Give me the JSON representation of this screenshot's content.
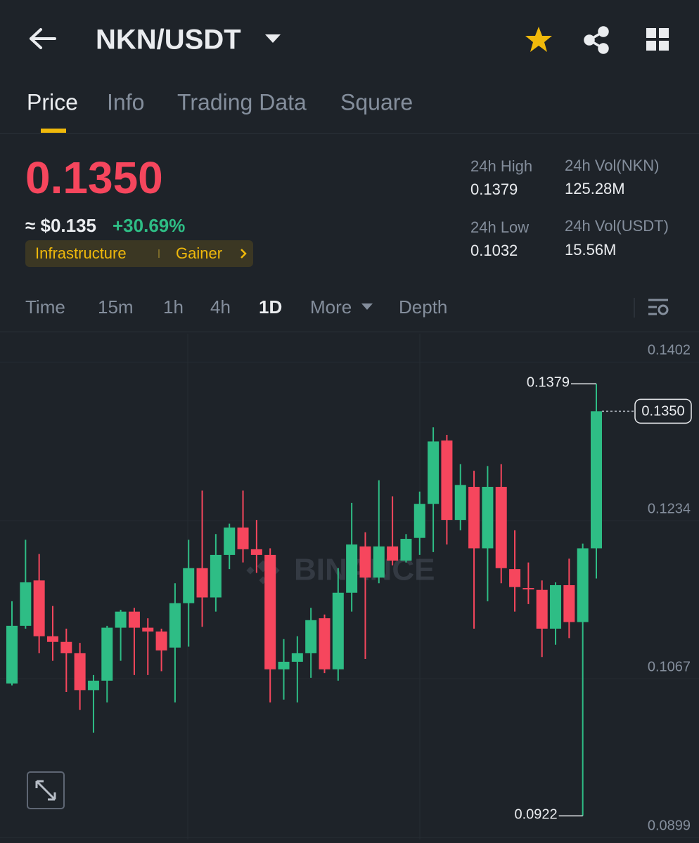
{
  "header": {
    "pair": "NKN/USDT"
  },
  "tabs": [
    "Price",
    "Info",
    "Trading Data",
    "Square"
  ],
  "price": {
    "last": "0.1350",
    "usd": "≈ $0.135",
    "change": "+30.69%",
    "tags": [
      "Infrastructure",
      "Gainer"
    ]
  },
  "stats": [
    {
      "label": "24h High",
      "value": "0.1379"
    },
    {
      "label": "24h Vol(NKN)",
      "value": "125.28M"
    },
    {
      "label": "24h Low",
      "value": "0.1032"
    },
    {
      "label": "24h Vol(USDT)",
      "value": "15.56M"
    }
  ],
  "intervals": [
    "Time",
    "15m",
    "1h",
    "4h",
    "1D",
    "More",
    "Depth"
  ],
  "chart_data": {
    "type": "candlestick",
    "watermark": "BINANCE",
    "up_color": "#2ebd85",
    "down_color": "#f6465d",
    "open": [
      0.1062,
      0.1123,
      0.1171,
      0.1112,
      0.1106,
      0.1094,
      0.1055,
      0.1065,
      0.1121,
      0.1138,
      0.1121,
      0.1117,
      0.11,
      0.1147,
      0.1184,
      0.1153,
      0.1198,
      0.1227,
      0.1204,
      0.1198,
      0.1077,
      0.1085,
      0.1094,
      0.1131,
      0.1077,
      0.1158,
      0.1207,
      0.1174,
      0.1207,
      0.1192,
      0.1216,
      0.1252,
      0.1319,
      0.1235,
      0.127,
      0.1205,
      0.127,
      0.1183,
      0.1163,
      0.1161,
      0.112,
      0.1166,
      0.1127,
      0.1205
    ],
    "high": [
      0.1149,
      0.1214,
      0.1199,
      0.1144,
      0.112,
      0.1105,
      0.1071,
      0.1123,
      0.114,
      0.1142,
      0.1131,
      0.112,
      0.1168,
      0.1214,
      0.1266,
      0.122,
      0.1231,
      0.1266,
      0.1235,
      0.1205,
      0.1109,
      0.1112,
      0.1142,
      0.1135,
      0.1184,
      0.1253,
      0.1222,
      0.1277,
      0.126,
      0.122,
      0.1265,
      0.1333,
      0.1325,
      0.1294,
      0.1287,
      0.1292,
      0.1294,
      0.1224,
      0.119,
      0.1171,
      0.1169,
      0.1194,
      0.121,
      0.1379
    ],
    "low": [
      0.106,
      0.112,
      0.1094,
      0.1086,
      0.1053,
      0.1034,
      0.101,
      0.1042,
      0.1086,
      0.1071,
      0.1071,
      0.1075,
      0.1042,
      0.1101,
      0.1122,
      0.1138,
      0.1183,
      0.119,
      0.1179,
      0.1042,
      0.1045,
      0.1042,
      0.1068,
      0.1073,
      0.1065,
      0.1138,
      0.1088,
      0.1168,
      0.1187,
      0.119,
      0.1198,
      0.1201,
      0.1209,
      0.1224,
      0.112,
      0.1149,
      0.1168,
      0.1138,
      0.1146,
      0.109,
      0.1103,
      0.111,
      0.0922,
      0.1173
    ],
    "close": [
      0.1123,
      0.1169,
      0.1112,
      0.1106,
      0.1094,
      0.1055,
      0.1065,
      0.1121,
      0.1138,
      0.1121,
      0.1117,
      0.1097,
      0.1147,
      0.1184,
      0.1153,
      0.1198,
      0.1227,
      0.1204,
      0.1198,
      0.1077,
      0.1085,
      0.1094,
      0.1129,
      0.1077,
      0.1158,
      0.1209,
      0.1174,
      0.1207,
      0.1192,
      0.1215,
      0.1252,
      0.1318,
      0.1235,
      0.1272,
      0.1205,
      0.127,
      0.1184,
      0.1164,
      0.1162,
      0.112,
      0.1166,
      0.1127,
      0.1205,
      0.135
    ],
    "ylim": [
      0.0897,
      0.1432
    ],
    "yticks": [
      0.1402,
      0.1234,
      0.1067,
      0.0899
    ],
    "high_marker": 0.1379,
    "low_marker": 0.0922,
    "last_price": {
      "value": 0.135,
      "label": "0.1350"
    }
  }
}
